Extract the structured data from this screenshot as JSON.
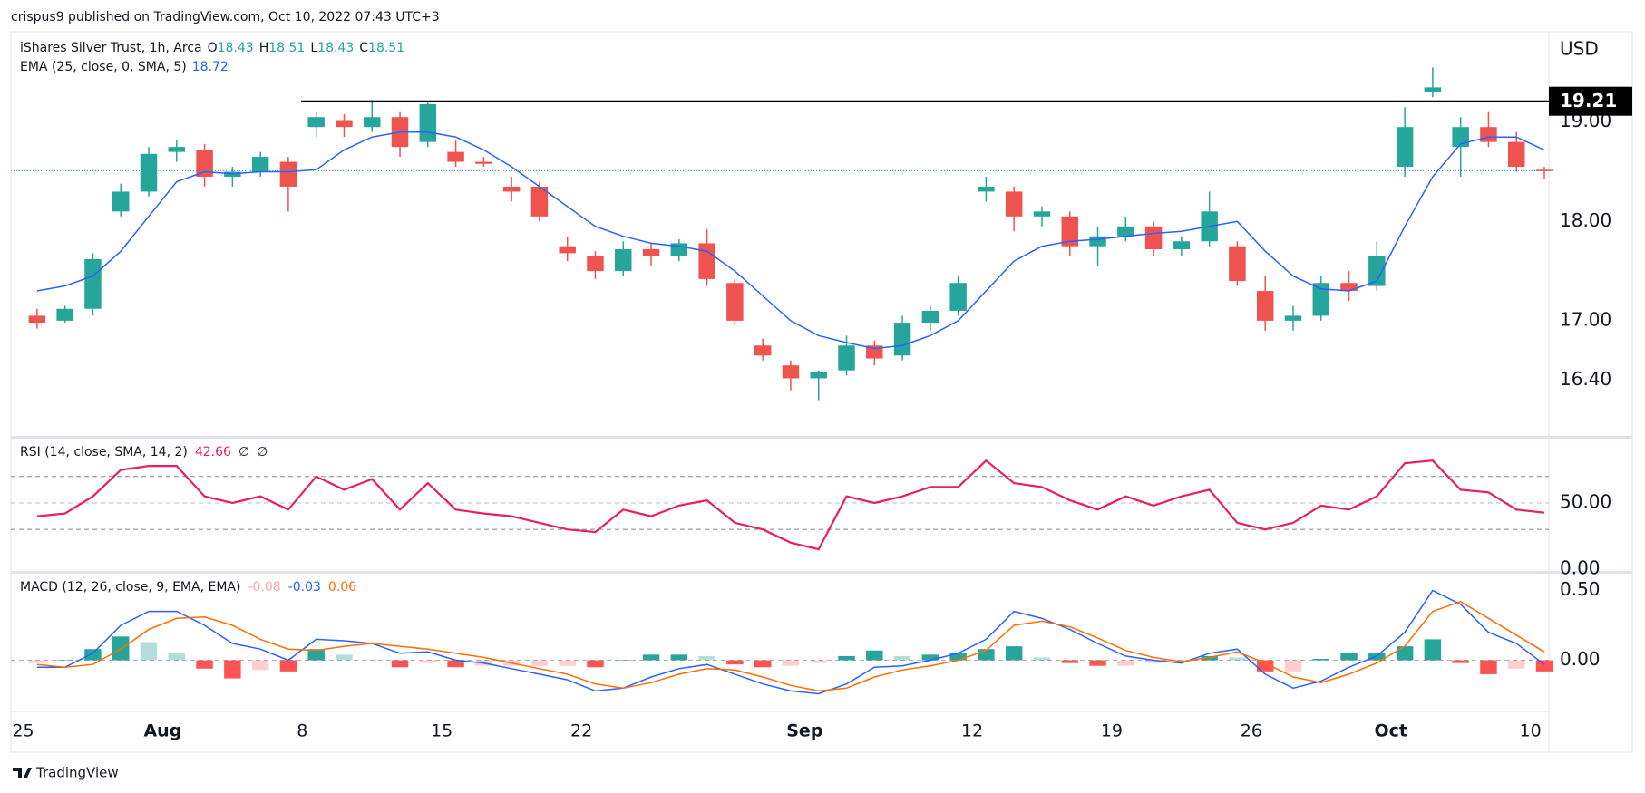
{
  "header": {
    "publisher": "crispus9 published on TradingView.com, Oct 10, 2022 07:43 UTC+3"
  },
  "footer": {
    "brand": "TradingView"
  },
  "chart_data": [
    {
      "type": "candlestick",
      "title": "iShares Silver Trust, 1h, Arca",
      "legend_values": [
        {
          "key": "O",
          "value": 18.43
        },
        {
          "key": "H",
          "value": 18.51
        },
        {
          "key": "L",
          "value": 18.43
        },
        {
          "key": "C",
          "value": 18.51
        }
      ],
      "categories": [
        "25",
        null,
        null,
        null,
        null,
        "Aug",
        null,
        null,
        null,
        null,
        "8",
        null,
        null,
        null,
        null,
        "15",
        null,
        null,
        null,
        null,
        "22",
        null,
        null,
        null,
        null,
        null,
        null,
        null,
        "Sep",
        null,
        null,
        null,
        null,
        null,
        "12",
        null,
        null,
        null,
        null,
        "19",
        null,
        null,
        null,
        null,
        "26",
        null,
        null,
        null,
        null,
        "Oct",
        null,
        null,
        null,
        null,
        "10"
      ],
      "open": [
        17.05,
        17.0,
        17.12,
        18.1,
        18.3,
        18.7,
        18.72,
        18.45,
        18.5,
        18.6,
        18.95,
        19.02,
        18.95,
        19.05,
        18.8,
        18.7,
        18.6,
        18.35,
        18.35,
        17.75,
        17.65,
        17.5,
        17.72,
        17.65,
        17.78,
        17.38,
        16.75,
        16.55,
        16.42,
        16.5,
        16.75,
        16.65,
        16.98,
        17.1,
        18.3,
        18.3,
        18.05,
        18.05,
        17.75,
        17.85,
        17.95,
        17.72,
        17.8,
        17.75,
        17.3,
        17.0,
        17.05,
        17.38,
        17.35,
        18.55,
        19.3,
        18.75,
        18.95,
        18.8,
        18.52
      ],
      "high": [
        17.12,
        17.15,
        17.68,
        18.38,
        18.75,
        18.82,
        18.78,
        18.55,
        18.7,
        18.65,
        19.1,
        19.08,
        19.22,
        19.1,
        19.2,
        18.82,
        18.65,
        18.45,
        18.4,
        17.85,
        17.7,
        17.8,
        17.78,
        17.82,
        17.92,
        17.42,
        16.82,
        16.6,
        16.5,
        16.85,
        16.8,
        17.05,
        17.15,
        17.45,
        18.45,
        18.35,
        18.15,
        18.1,
        17.95,
        18.05,
        18.0,
        17.85,
        18.3,
        17.8,
        17.45,
        17.15,
        17.45,
        17.5,
        17.8,
        19.15,
        19.55,
        19.05,
        19.1,
        18.9,
        18.55
      ],
      "low": [
        16.92,
        16.98,
        17.05,
        18.05,
        18.25,
        18.6,
        18.35,
        18.35,
        18.45,
        18.1,
        18.85,
        18.85,
        18.9,
        18.65,
        18.75,
        18.55,
        18.55,
        18.2,
        18.0,
        17.6,
        17.42,
        17.45,
        17.55,
        17.6,
        17.35,
        16.95,
        16.6,
        16.3,
        16.2,
        16.45,
        16.55,
        16.6,
        16.9,
        17.05,
        18.2,
        17.9,
        17.95,
        17.65,
        17.55,
        17.8,
        17.65,
        17.65,
        17.75,
        17.35,
        16.9,
        16.9,
        17.0,
        17.2,
        17.3,
        18.45,
        19.25,
        18.45,
        18.75,
        18.5,
        18.43
      ],
      "close": [
        16.98,
        17.12,
        17.62,
        18.3,
        18.68,
        18.75,
        18.45,
        18.5,
        18.65,
        18.35,
        19.05,
        18.95,
        19.05,
        18.75,
        19.18,
        18.6,
        18.58,
        18.3,
        18.05,
        17.68,
        17.5,
        17.72,
        17.65,
        17.78,
        17.42,
        17.0,
        16.65,
        16.42,
        16.48,
        16.75,
        16.62,
        16.98,
        17.1,
        17.38,
        18.35,
        18.05,
        18.1,
        17.75,
        17.85,
        17.95,
        17.72,
        17.8,
        18.1,
        17.4,
        17.0,
        17.05,
        17.38,
        17.3,
        17.65,
        18.95,
        19.35,
        18.95,
        18.8,
        18.55,
        18.51
      ],
      "up_color": "#26a69a",
      "down_color": "#ef5350",
      "series": [
        {
          "name": "EMA (25, close, 0, SMA, 5)",
          "color": "#2962ff",
          "last_value": 18.72,
          "values": [
            17.3,
            17.35,
            17.45,
            17.7,
            18.05,
            18.4,
            18.5,
            18.48,
            18.5,
            18.5,
            18.52,
            18.72,
            18.85,
            18.9,
            18.9,
            18.85,
            18.72,
            18.55,
            18.35,
            18.15,
            17.95,
            17.85,
            17.78,
            17.75,
            17.7,
            17.5,
            17.25,
            17.0,
            16.85,
            16.78,
            16.72,
            16.75,
            16.85,
            17.0,
            17.3,
            17.6,
            17.75,
            17.8,
            17.82,
            17.85,
            17.88,
            17.9,
            17.95,
            18.0,
            17.7,
            17.45,
            17.32,
            17.3,
            17.4,
            17.95,
            18.45,
            18.78,
            18.85,
            18.85,
            18.72
          ]
        }
      ],
      "currency": "USD",
      "level_line": 19.21,
      "ylim": [
        15.84,
        19.91
      ],
      "yticks": [
        {
          "value": 16.4,
          "label": "16.40"
        },
        {
          "value": 17,
          "label": "17.00"
        },
        {
          "value": 18,
          "label": "18.00"
        },
        {
          "value": 19,
          "label": "19.00"
        }
      ]
    },
    {
      "type": "line",
      "title": "RSI (14, close, SMA, 14, 2)",
      "legend_extra": [
        "∅",
        "∅"
      ],
      "series": [
        {
          "color": "#e91e63",
          "last_value": 42.66,
          "values": [
            40,
            42,
            55,
            75,
            78,
            78,
            55,
            50,
            55,
            45,
            70,
            60,
            68,
            45,
            65,
            45,
            42,
            40,
            35,
            30,
            28,
            45,
            40,
            48,
            52,
            35,
            30,
            20,
            15,
            55,
            50,
            55,
            62,
            62,
            82,
            65,
            62,
            52,
            45,
            55,
            48,
            55,
            60,
            35,
            30,
            35,
            48,
            45,
            55,
            80,
            82,
            60,
            58,
            45,
            42.66
          ]
        }
      ],
      "bands": [
        30,
        50,
        70
      ],
      "ylim": [
        -1.4,
        98.6
      ],
      "yticks": [
        {
          "value": 0,
          "label": "0.00"
        },
        {
          "value": 50,
          "label": "50.00"
        }
      ]
    },
    {
      "type": "macd",
      "title": "MACD (12, 26, close, 9, EMA, EMA)",
      "histogram": {
        "last_value": -0.08,
        "color": "#f7a9b0",
        "colors": {
          "rising_above": "#26a69a",
          "falling_above": "#b2dfdb",
          "rising_below": "#ffcdd2",
          "falling_below": "#ff5252"
        },
        "values": [
          -0.02,
          0,
          0.08,
          0.17,
          0.13,
          0.05,
          -0.06,
          -0.13,
          -0.07,
          -0.08,
          0.08,
          0.04,
          0,
          -0.05,
          -0.02,
          -0.05,
          -0.04,
          -0.04,
          -0.04,
          -0.04,
          -0.05,
          0,
          0.04,
          0.04,
          0.03,
          -0.03,
          -0.05,
          -0.04,
          -0.02,
          0.03,
          0.07,
          0.03,
          0.04,
          0.05,
          0.08,
          0.1,
          0.02,
          -0.02,
          -0.04,
          -0.04,
          -0.02,
          -0.01,
          0.03,
          0.02,
          -0.08,
          -0.08,
          0.01,
          0.05,
          0.05,
          0.1,
          0.15,
          -0.02,
          -0.1,
          -0.06,
          -0.08
        ]
      },
      "series": [
        {
          "color": "#2962ff",
          "last_value": -0.03,
          "values": [
            -0.05,
            -0.05,
            0.05,
            0.25,
            0.35,
            0.35,
            0.25,
            0.12,
            0.08,
            0.0,
            0.15,
            0.14,
            0.12,
            0.05,
            0.06,
            0.0,
            -0.02,
            -0.06,
            -0.1,
            -0.14,
            -0.22,
            -0.2,
            -0.12,
            -0.06,
            -0.03,
            -0.1,
            -0.17,
            -0.22,
            -0.24,
            -0.17,
            -0.05,
            -0.04,
            0.0,
            0.05,
            0.15,
            0.35,
            0.3,
            0.22,
            0.12,
            0.03,
            0.0,
            -0.02,
            0.05,
            0.08,
            -0.1,
            -0.2,
            -0.15,
            -0.05,
            0.03,
            0.2,
            0.5,
            0.4,
            0.2,
            0.12,
            -0.03
          ]
        },
        {
          "color": "#ff6d00",
          "last_value": 0.06,
          "values": [
            -0.03,
            -0.05,
            -0.03,
            0.08,
            0.22,
            0.3,
            0.31,
            0.25,
            0.15,
            0.08,
            0.07,
            0.1,
            0.12,
            0.1,
            0.08,
            0.05,
            0.02,
            -0.02,
            -0.06,
            -0.1,
            -0.17,
            -0.2,
            -0.16,
            -0.1,
            -0.06,
            -0.07,
            -0.12,
            -0.18,
            -0.22,
            -0.2,
            -0.12,
            -0.07,
            -0.04,
            0.0,
            0.07,
            0.25,
            0.28,
            0.24,
            0.16,
            0.07,
            0.02,
            -0.01,
            0.02,
            0.06,
            -0.02,
            -0.12,
            -0.16,
            -0.1,
            -0.02,
            0.1,
            0.35,
            0.42,
            0.3,
            0.18,
            0.06
          ]
        }
      ],
      "ylim": [
        -0.36,
        0.62
      ],
      "yticks": [
        {
          "value": 0,
          "label": "0.00"
        },
        {
          "value": 0.5,
          "label": "0.50"
        }
      ]
    }
  ]
}
